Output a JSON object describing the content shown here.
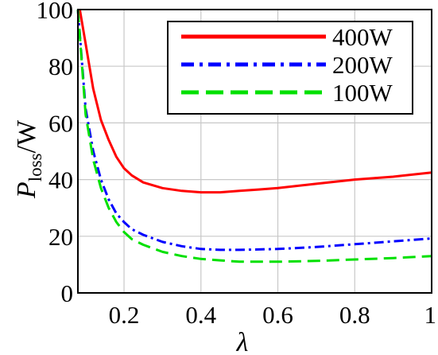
{
  "chart_data": {
    "type": "line",
    "title": "",
    "xlabel": "λ",
    "ylabel_main": "P",
    "ylabel_sub": "loss",
    "ylabel_unit": "/W",
    "xlim": [
      0.08,
      1.0
    ],
    "ylim": [
      0,
      100
    ],
    "x_ticks": [
      0.2,
      0.4,
      0.6,
      0.8,
      1.0
    ],
    "x_tick_labels": [
      "0.2",
      "0.4",
      "0.6",
      "0.8",
      "1"
    ],
    "y_ticks": [
      0,
      20,
      40,
      60,
      80,
      100
    ],
    "y_tick_labels": [
      "0",
      "20",
      "40",
      "60",
      "80",
      "100"
    ],
    "grid": true,
    "legend_position": "top-right",
    "series": [
      {
        "name": "400W",
        "color": "#ff0000",
        "style": "solid",
        "x": [
          0.085,
          0.1,
          0.12,
          0.14,
          0.16,
          0.18,
          0.2,
          0.22,
          0.25,
          0.3,
          0.35,
          0.4,
          0.45,
          0.5,
          0.55,
          0.6,
          0.7,
          0.8,
          0.9,
          1.0
        ],
        "y": [
          100,
          88,
          72,
          61,
          54,
          48,
          44,
          41.5,
          39,
          37,
          36,
          35.5,
          35.5,
          36,
          36.5,
          37,
          38.5,
          40,
          41,
          42.5
        ]
      },
      {
        "name": "200W",
        "color": "#0000ff",
        "style": "dashdot",
        "x": [
          0.08,
          0.1,
          0.12,
          0.14,
          0.16,
          0.18,
          0.2,
          0.22,
          0.25,
          0.3,
          0.35,
          0.4,
          0.45,
          0.5,
          0.6,
          0.7,
          0.8,
          0.9,
          1.0
        ],
        "y": [
          100,
          65,
          50,
          40,
          33,
          28,
          25,
          22.5,
          20.5,
          18,
          16.5,
          15.5,
          15.2,
          15.2,
          15.5,
          16.2,
          17.2,
          18.2,
          19.2
        ]
      },
      {
        "name": "100W",
        "color": "#00e000",
        "style": "dashed",
        "x": [
          0.08,
          0.1,
          0.12,
          0.14,
          0.16,
          0.18,
          0.2,
          0.22,
          0.25,
          0.3,
          0.35,
          0.4,
          0.45,
          0.5,
          0.55,
          0.6,
          0.7,
          0.8,
          0.9,
          1.0
        ],
        "y": [
          100,
          63,
          47,
          37,
          30,
          25,
          21.5,
          19,
          17,
          14.5,
          13,
          12,
          11.5,
          11,
          11,
          11,
          11.3,
          11.8,
          12.3,
          13
        ]
      }
    ]
  }
}
